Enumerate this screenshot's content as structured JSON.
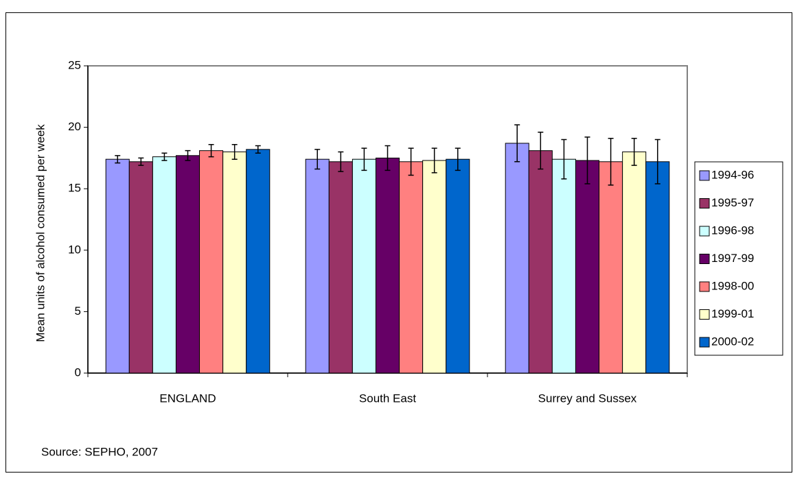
{
  "chart_data": {
    "type": "bar",
    "y_label": "Mean units of alcohol consumed per week",
    "source": "Source: SEPHO, 2007",
    "categories": [
      "ENGLAND",
      "South East",
      "Surrey and Sussex"
    ],
    "series": [
      {
        "name": "1994-96",
        "color": "#9999ff",
        "values": [
          17.4,
          17.4,
          18.7
        ],
        "errors": [
          0.3,
          0.8,
          1.5
        ]
      },
      {
        "name": "1995-97",
        "color": "#993366",
        "values": [
          17.2,
          17.2,
          18.1
        ],
        "errors": [
          0.3,
          0.8,
          1.5
        ]
      },
      {
        "name": "1996-98",
        "color": "#ccffff",
        "values": [
          17.6,
          17.4,
          17.4
        ],
        "errors": [
          0.3,
          0.9,
          1.6
        ]
      },
      {
        "name": "1997-99",
        "color": "#660066",
        "values": [
          17.7,
          17.5,
          17.3
        ],
        "errors": [
          0.4,
          1.0,
          1.9
        ]
      },
      {
        "name": "1998-00",
        "color": "#ff8080",
        "values": [
          18.1,
          17.2,
          17.2
        ],
        "errors": [
          0.5,
          1.1,
          1.9
        ]
      },
      {
        "name": "1999-01",
        "color": "#ffffcc",
        "values": [
          18.0,
          17.3,
          18.0
        ],
        "errors": [
          0.6,
          1.0,
          1.1
        ]
      },
      {
        "name": "2000-02",
        "color": "#0066cc",
        "values": [
          18.2,
          17.4,
          17.2
        ],
        "errors": [
          0.3,
          0.9,
          1.8
        ]
      }
    ],
    "ylim": [
      0,
      25
    ],
    "yticks": [
      0,
      5,
      10,
      15,
      20,
      25
    ],
    "grid": false,
    "legend": "right"
  }
}
